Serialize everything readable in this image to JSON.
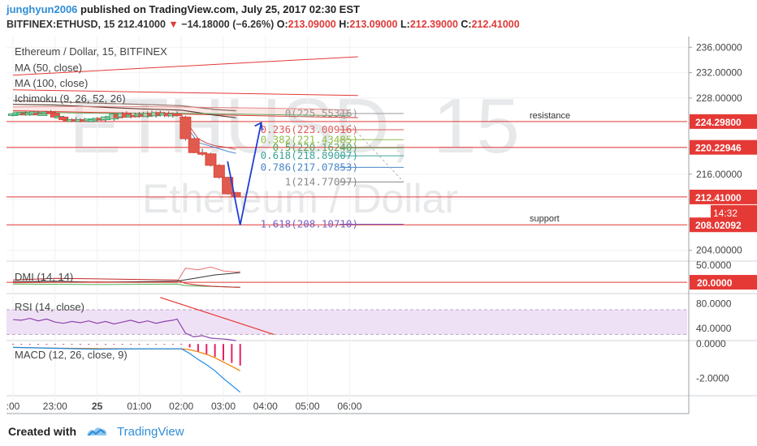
{
  "header": {
    "author": "junghyun2006",
    "published": "published on TradingView.com, July 25, 2017 02:30 EST",
    "symbol": "BITFINEX:ETHUSD, 15",
    "last": "212.41000",
    "change": "−14.18000 (−6.26%)",
    "o_label": "O:",
    "o": "213.09000",
    "h_label": "H:",
    "h": "213.09000",
    "l_label": "L:",
    "l": "212.39000",
    "c_label": "C:",
    "c": "212.41000"
  },
  "chart_data": {
    "type": "candlestick",
    "title": "Ethereum / Dollar, 15, BITFINEX",
    "watermark": [
      "ETHUSD, 15",
      "Ethereum / Dollar"
    ],
    "studies": [
      "MA (50, close)",
      "MA (100, close)",
      "Ichimoku (9, 26, 52, 26)"
    ],
    "x_ticks": [
      ":00",
      "23:00",
      "25",
      "01:00",
      "02:00",
      "03:00",
      "04:00",
      "05:00",
      "06:00"
    ],
    "x_tick_index": [
      0,
      10,
      20,
      30,
      40,
      50,
      60,
      70,
      80
    ],
    "y_ticks": [
      "236.00000",
      "232.00000",
      "228.00000",
      "224.00000",
      "220.00000",
      "216.00000",
      "212.00000",
      "208.00000",
      "204.00000"
    ],
    "ylim": [
      202.3,
      237.7
    ],
    "price_labels": [
      {
        "text": "224.29800",
        "value": 224.298,
        "color": "#e53935"
      },
      {
        "text": "220.22946",
        "value": 220.22946,
        "color": "#e53935"
      },
      {
        "text": "212.41000",
        "value": 212.41,
        "color": "#e53935"
      },
      {
        "text": "208.02092",
        "value": 208.02092,
        "color": "#e53935"
      }
    ],
    "countdown": "14:32",
    "candles": [
      {
        "i": 0,
        "o": 225.4,
        "h": 225.7,
        "l": 225.1,
        "c": 225.5
      },
      {
        "i": 1,
        "o": 225.5,
        "h": 225.8,
        "l": 225.3,
        "c": 225.6
      },
      {
        "i": 2,
        "o": 225.5,
        "h": 225.8,
        "l": 225.3,
        "c": 225.7
      },
      {
        "i": 3,
        "o": 225.6,
        "h": 225.9,
        "l": 225.2,
        "c": 225.4
      },
      {
        "i": 4,
        "o": 225.5,
        "h": 225.8,
        "l": 225.2,
        "c": 225.6
      },
      {
        "i": 5,
        "o": 225.5,
        "h": 225.9,
        "l": 225.3,
        "c": 225.8
      },
      {
        "i": 6,
        "o": 225.6,
        "h": 225.9,
        "l": 225.3,
        "c": 225.4
      },
      {
        "i": 7,
        "o": 225.4,
        "h": 225.7,
        "l": 225.2,
        "c": 225.5
      },
      {
        "i": 8,
        "o": 225.6,
        "h": 226.0,
        "l": 225.4,
        "c": 225.8
      },
      {
        "i": 9,
        "o": 225.8,
        "h": 226.1,
        "l": 225.5,
        "c": 225.6
      },
      {
        "i": 10,
        "o": 225.6,
        "h": 225.9,
        "l": 224.9,
        "c": 225.0
      },
      {
        "i": 11,
        "o": 225.0,
        "h": 225.3,
        "l": 224.7,
        "c": 225.1
      },
      {
        "i": 12,
        "o": 225.0,
        "h": 225.2,
        "l": 224.5,
        "c": 224.6
      },
      {
        "i": 13,
        "o": 224.6,
        "h": 224.9,
        "l": 224.3,
        "c": 224.5
      },
      {
        "i": 14,
        "o": 224.5,
        "h": 224.8,
        "l": 224.2,
        "c": 224.6
      },
      {
        "i": 15,
        "o": 224.6,
        "h": 225.0,
        "l": 224.3,
        "c": 224.4
      },
      {
        "i": 16,
        "o": 224.4,
        "h": 224.8,
        "l": 224.2,
        "c": 224.6
      },
      {
        "i": 17,
        "o": 224.6,
        "h": 224.9,
        "l": 224.3,
        "c": 224.4
      },
      {
        "i": 18,
        "o": 224.4,
        "h": 224.8,
        "l": 224.2,
        "c": 224.7
      },
      {
        "i": 19,
        "o": 224.5,
        "h": 224.9,
        "l": 224.2,
        "c": 224.6
      },
      {
        "i": 20,
        "o": 224.6,
        "h": 225.0,
        "l": 224.3,
        "c": 224.8
      },
      {
        "i": 21,
        "o": 224.8,
        "h": 225.1,
        "l": 224.4,
        "c": 224.6
      },
      {
        "i": 22,
        "o": 224.6,
        "h": 225.2,
        "l": 224.2,
        "c": 225.0
      },
      {
        "i": 23,
        "o": 225.0,
        "h": 225.4,
        "l": 224.7,
        "c": 225.1
      },
      {
        "i": 24,
        "o": 224.7,
        "h": 225.6,
        "l": 224.4,
        "c": 225.5
      },
      {
        "i": 25,
        "o": 225.4,
        "h": 225.7,
        "l": 224.8,
        "c": 224.9
      },
      {
        "i": 26,
        "o": 225.0,
        "h": 225.8,
        "l": 224.8,
        "c": 225.6
      },
      {
        "i": 27,
        "o": 225.6,
        "h": 225.9,
        "l": 224.9,
        "c": 225.0
      },
      {
        "i": 28,
        "o": 225.1,
        "h": 225.6,
        "l": 224.8,
        "c": 225.3
      },
      {
        "i": 29,
        "o": 225.3,
        "h": 225.7,
        "l": 224.9,
        "c": 225.1
      },
      {
        "i": 30,
        "o": 225.2,
        "h": 225.8,
        "l": 224.9,
        "c": 225.4
      },
      {
        "i": 31,
        "o": 225.4,
        "h": 225.8,
        "l": 225.0,
        "c": 225.1
      },
      {
        "i": 32,
        "o": 225.1,
        "h": 225.9,
        "l": 224.9,
        "c": 225.6
      },
      {
        "i": 33,
        "o": 225.6,
        "h": 226.0,
        "l": 225.1,
        "c": 225.2
      },
      {
        "i": 34,
        "o": 225.2,
        "h": 225.9,
        "l": 224.9,
        "c": 225.7
      },
      {
        "i": 35,
        "o": 225.7,
        "h": 226.0,
        "l": 225.1,
        "c": 225.3
      },
      {
        "i": 36,
        "o": 225.3,
        "h": 225.8,
        "l": 225.0,
        "c": 225.6
      },
      {
        "i": 37,
        "o": 225.6,
        "h": 225.9,
        "l": 225.0,
        "c": 225.2
      },
      {
        "i": 38,
        "o": 225.2,
        "h": 225.7,
        "l": 224.9,
        "c": 225.5
      },
      {
        "i": 39,
        "o": 225.5,
        "h": 225.9,
        "l": 225.1,
        "c": 225.4
      },
      {
        "i": 41,
        "o": 225.0,
        "h": 225.2,
        "l": 221.3,
        "c": 221.6
      },
      {
        "i": 43,
        "o": 221.6,
        "h": 221.7,
        "l": 219.3,
        "c": 219.4
      },
      {
        "i": 45,
        "o": 219.4,
        "h": 220.0,
        "l": 218.9,
        "c": 219.2
      },
      {
        "i": 47,
        "o": 219.2,
        "h": 219.4,
        "l": 217.2,
        "c": 217.4
      },
      {
        "i": 49,
        "o": 217.4,
        "h": 217.6,
        "l": 215.3,
        "c": 215.5
      },
      {
        "i": 51,
        "o": 215.5,
        "h": 215.6,
        "l": 212.8,
        "c": 212.9
      },
      {
        "i": 53,
        "o": 213.09,
        "h": 213.09,
        "l": 212.39,
        "c": 212.41
      }
    ],
    "horizontal_lines": [
      {
        "value": 224.298,
        "label": "resistance"
      },
      {
        "value": 220.22946,
        "label": ""
      },
      {
        "value": 212.41,
        "label": ""
      },
      {
        "value": 208.02092,
        "label": "support"
      }
    ],
    "fibonacci": [
      {
        "level": "0",
        "price": "225.55316",
        "text": "0(225.55316)",
        "value": 225.553,
        "color": "#999999"
      },
      {
        "level": "0.236",
        "price": "223.00916",
        "text": "0.236(223.00916)",
        "value": 223.009,
        "color": "#e05b5b"
      },
      {
        "level": "0.382",
        "price": "221.43485",
        "text": "0.382(221.43485)",
        "value": 221.435,
        "color": "#8fbf4a"
      },
      {
        "level": "0.5",
        "price": "220.16240",
        "text": "0.5(220.16240)",
        "value": 220.162,
        "color": "#5aa35a"
      },
      {
        "level": "0.618",
        "price": "218.89007",
        "text": "0.618(218.89007)",
        "value": 218.89,
        "color": "#3fa39a"
      },
      {
        "level": "0.786",
        "price": "217.07853",
        "text": "0.786(217.07853)",
        "value": 217.079,
        "color": "#4a88c8"
      },
      {
        "level": "1",
        "price": "214.77097",
        "text": "1(214.77097)",
        "value": 214.771,
        "color": "#888888"
      },
      {
        "level": "1.618",
        "price": "208.10710",
        "text": "1.618(208.10710)",
        "value": 208.107,
        "color": "#7a5fc2"
      }
    ],
    "ma50": [
      [
        0,
        227.0
      ],
      [
        10,
        226.9
      ],
      [
        20,
        226.6
      ],
      [
        30,
        226.3
      ],
      [
        40,
        226.1
      ],
      [
        44,
        225.7
      ],
      [
        48,
        225.3
      ],
      [
        53,
        224.9
      ]
    ],
    "ma100": [
      [
        0,
        227.6
      ],
      [
        10,
        227.4
      ],
      [
        20,
        227.2
      ],
      [
        30,
        227.0
      ],
      [
        40,
        226.8
      ],
      [
        44,
        226.5
      ],
      [
        48,
        226.2
      ],
      [
        53,
        226.0
      ]
    ],
    "ichimoku_lines": [
      {
        "color": "#4b8bd6",
        "points": [
          [
            40,
            225.4
          ],
          [
            42,
            222.8
          ],
          [
            44,
            221.0
          ],
          [
            46,
            220.6
          ],
          [
            48,
            220.2
          ],
          [
            51,
            219.6
          ],
          [
            53,
            219.3
          ]
        ]
      },
      {
        "color": "#c44f4f",
        "points": [
          [
            40,
            225.3
          ],
          [
            42,
            223.5
          ],
          [
            44,
            221.6
          ],
          [
            46,
            220.9
          ],
          [
            48,
            220.5
          ],
          [
            51,
            220.2
          ],
          [
            53,
            219.9
          ]
        ]
      },
      {
        "color": "#5faa5f",
        "points": [
          [
            0,
            225.8
          ],
          [
            20,
            225.6
          ],
          [
            40,
            225.6
          ],
          [
            50,
            225.5
          ],
          [
            60,
            225.4
          ],
          [
            70,
            225.3
          ],
          [
            80,
            225.2
          ]
        ]
      },
      {
        "color": "#e58a8a",
        "points": [
          [
            0,
            226.6
          ],
          [
            20,
            226.7
          ],
          [
            40,
            226.6
          ],
          [
            50,
            226.5
          ],
          [
            60,
            226.4
          ],
          [
            70,
            226.3
          ],
          [
            80,
            226.1
          ]
        ]
      }
    ],
    "red_trend_line": [
      [
        0,
        231.6
      ],
      [
        82,
        234.5
      ]
    ],
    "red_lines_top": [
      {
        "from": [
          0,
          229.3
        ],
        "to": [
          82,
          228.4
        ]
      },
      {
        "from": [
          0,
          226.0
        ],
        "to": [
          82,
          224.9
        ]
      }
    ],
    "projection_arrow": [
      [
        51,
        218.0
      ],
      [
        54,
        208.0
      ],
      [
        59,
        224.1
      ]
    ],
    "dmi": {
      "title": "DMI (14, 14)",
      "y_ticks": [
        "50.0000"
      ],
      "y_values": [
        50
      ],
      "ylim": [
        0,
        56
      ],
      "level_label": "20.0000",
      "level": 20,
      "plus_di": [
        [
          0,
          19
        ],
        [
          10,
          20
        ],
        [
          20,
          21
        ],
        [
          30,
          20
        ],
        [
          39,
          21
        ],
        [
          41,
          45
        ],
        [
          44,
          42
        ],
        [
          47,
          47
        ],
        [
          50,
          40
        ],
        [
          53,
          38
        ],
        [
          54,
          39
        ]
      ],
      "minus_di": [
        [
          0,
          24
        ],
        [
          10,
          27
        ],
        [
          20,
          26
        ],
        [
          30,
          25
        ],
        [
          39,
          24
        ],
        [
          41,
          18
        ],
        [
          44,
          15
        ],
        [
          47,
          13
        ],
        [
          50,
          12
        ],
        [
          53,
          11
        ],
        [
          54,
          11
        ]
      ],
      "adx": [
        [
          0,
          21
        ],
        [
          10,
          22
        ],
        [
          20,
          20
        ],
        [
          30,
          21
        ],
        [
          39,
          22
        ],
        [
          44,
          28
        ],
        [
          48,
          33
        ],
        [
          54,
          37
        ]
      ],
      "green_line": [
        [
          0,
          17
        ],
        [
          20,
          16
        ],
        [
          39,
          17
        ],
        [
          41,
          14
        ],
        [
          54,
          11
        ]
      ]
    },
    "rsi": {
      "title": "RSI (14, close)",
      "y_ticks": [
        "80.0000",
        "40.0000"
      ],
      "y_values": [
        80,
        40
      ],
      "ylim": [
        20,
        95
      ],
      "band": [
        30,
        70
      ],
      "values": [
        [
          0,
          54
        ],
        [
          2,
          53
        ],
        [
          4,
          56
        ],
        [
          6,
          52
        ],
        [
          8,
          55
        ],
        [
          10,
          50
        ],
        [
          12,
          48
        ],
        [
          14,
          51
        ],
        [
          16,
          49
        ],
        [
          18,
          52
        ],
        [
          20,
          48
        ],
        [
          22,
          51
        ],
        [
          24,
          47
        ],
        [
          26,
          50
        ],
        [
          28,
          53
        ],
        [
          30,
          49
        ],
        [
          32,
          52
        ],
        [
          34,
          48
        ],
        [
          36,
          51
        ],
        [
          38,
          53
        ],
        [
          39,
          55
        ],
        [
          41,
          32
        ],
        [
          43,
          26
        ],
        [
          45,
          28
        ],
        [
          47,
          24
        ],
        [
          49,
          23
        ],
        [
          51,
          22
        ],
        [
          53,
          20
        ]
      ],
      "divergence_line": [
        [
          35,
          90
        ],
        [
          62,
          30
        ]
      ]
    },
    "macd": {
      "title": "MACD (12, 26, close, 9)",
      "y_ticks": [
        "0.0000",
        "-2.0000"
      ],
      "y_values": [
        0,
        -2
      ],
      "ylim": [
        -3.0,
        0.15
      ],
      "macd_line": [
        [
          0,
          -0.2
        ],
        [
          10,
          -0.25
        ],
        [
          20,
          -0.3
        ],
        [
          30,
          -0.28
        ],
        [
          40,
          -0.28
        ],
        [
          42,
          -0.55
        ],
        [
          44,
          -0.9
        ],
        [
          46,
          -1.2
        ],
        [
          48,
          -1.55
        ],
        [
          50,
          -2.0
        ],
        [
          52,
          -2.4
        ],
        [
          54,
          -2.8
        ]
      ],
      "signal_line": [
        [
          0,
          -0.2
        ],
        [
          10,
          -0.24
        ],
        [
          20,
          -0.27
        ],
        [
          30,
          -0.28
        ],
        [
          40,
          -0.28
        ],
        [
          42,
          -0.33
        ],
        [
          44,
          -0.45
        ],
        [
          46,
          -0.6
        ],
        [
          48,
          -0.8
        ],
        [
          50,
          -1.05
        ],
        [
          52,
          -1.3
        ],
        [
          54,
          -1.55
        ]
      ],
      "histogram": [
        [
          0,
          -0.04
        ],
        [
          2,
          -0.04
        ],
        [
          4,
          -0.04
        ],
        [
          6,
          -0.04
        ],
        [
          8,
          -0.04
        ],
        [
          10,
          -0.04
        ],
        [
          12,
          -0.04
        ],
        [
          14,
          -0.04
        ],
        [
          16,
          -0.04
        ],
        [
          18,
          -0.04
        ],
        [
          20,
          -0.04
        ],
        [
          22,
          -0.04
        ],
        [
          24,
          -0.04
        ],
        [
          26,
          -0.04
        ],
        [
          28,
          -0.04
        ],
        [
          30,
          -0.04
        ],
        [
          32,
          -0.04
        ],
        [
          34,
          -0.04
        ],
        [
          36,
          -0.04
        ],
        [
          38,
          -0.04
        ],
        [
          40,
          -0.04
        ],
        [
          42,
          -0.2
        ],
        [
          44,
          -0.45
        ],
        [
          46,
          -0.6
        ],
        [
          48,
          -0.75
        ],
        [
          50,
          -0.95
        ],
        [
          52,
          -1.1
        ],
        [
          54,
          -1.25
        ]
      ]
    }
  },
  "footer": {
    "created_with": "Created with",
    "brand": "TradingView"
  },
  "colors": {
    "accent": "#2f8dd6",
    "red": "#e53935",
    "blue_arrow": "#1f3fd6",
    "rsi_band": "#efe1f5"
  }
}
